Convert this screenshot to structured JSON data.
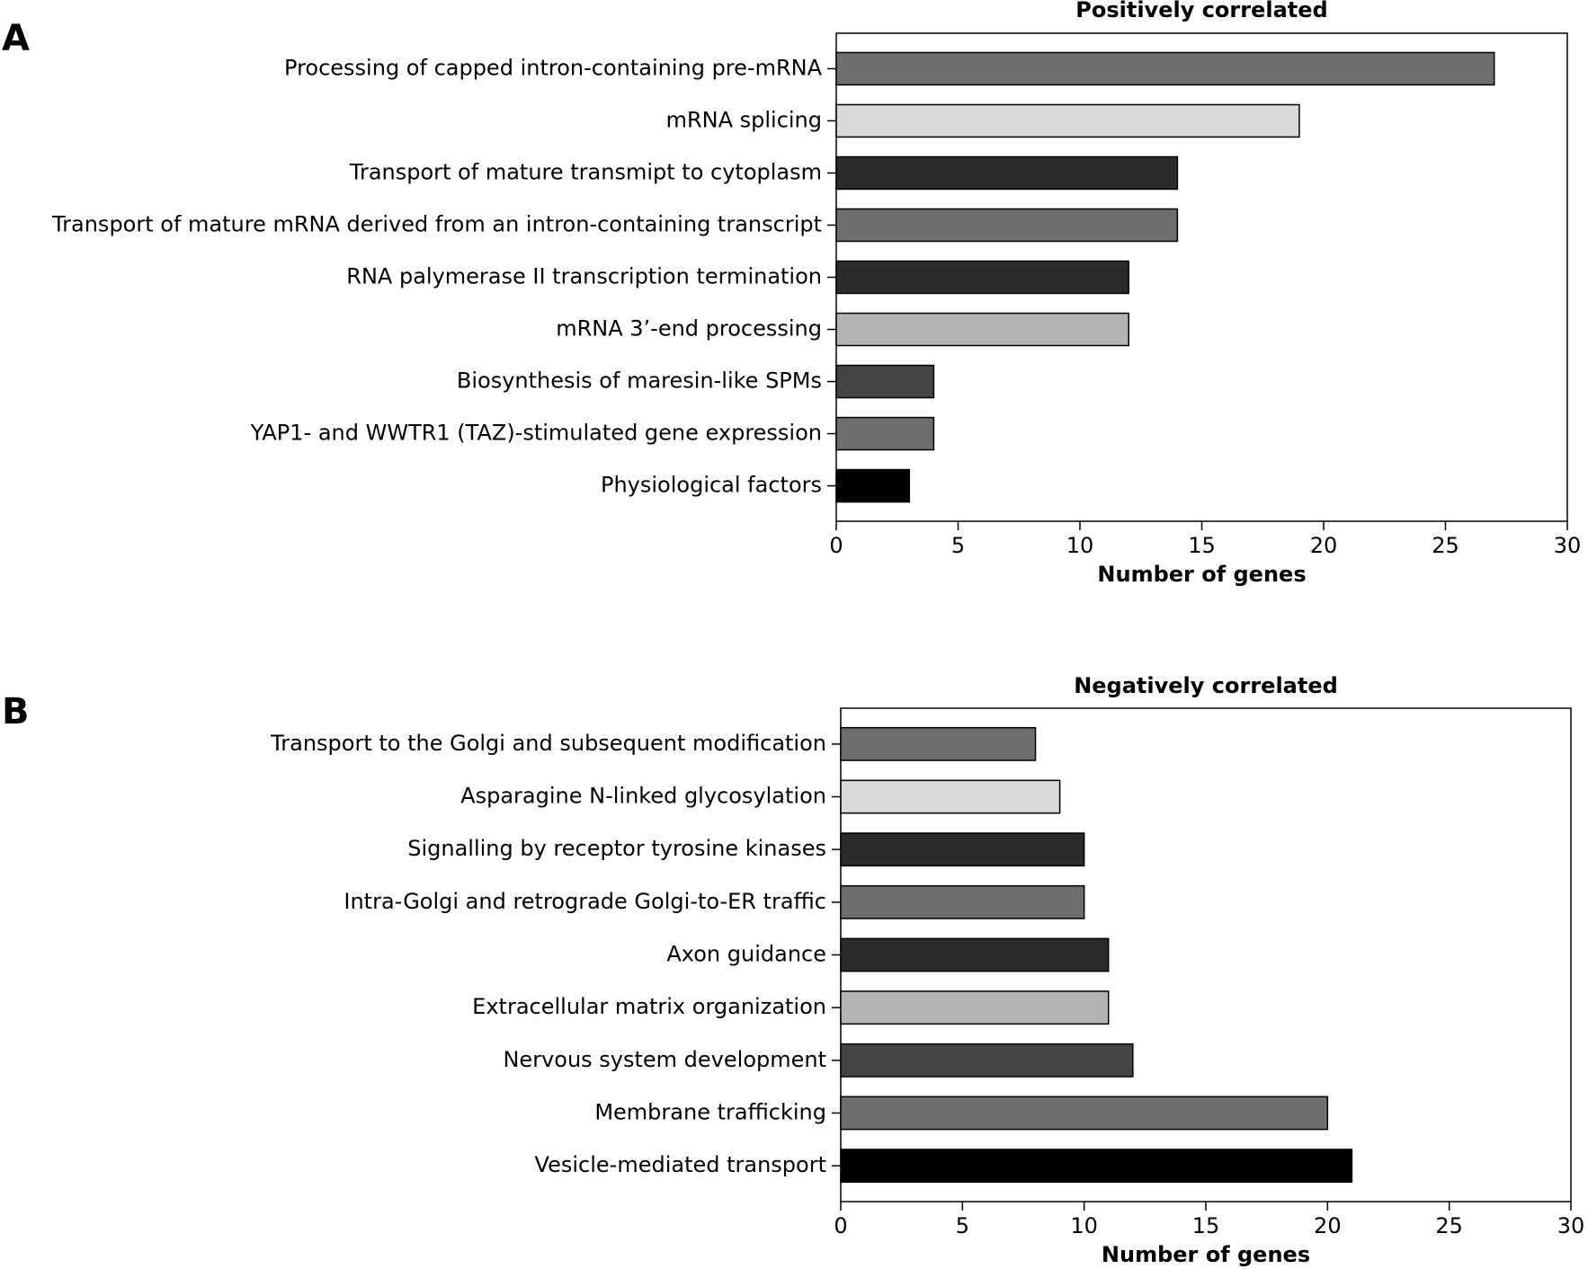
{
  "chart_data": [
    {
      "type": "barh",
      "panel_label": "A",
      "title": "Positively correlated",
      "xlabel": "Number of genes",
      "categories": [
        "Processing of capped intron-containing pre-mRNA",
        "mRNA splicing",
        "Transport of mature transmipt to cytoplasm",
        "Transport of mature mRNA derived from an intron-containing transcript",
        "RNA palymerase II transcription termination",
        "mRNA 3’-end processing",
        "Biosynthesis of maresin-like SPMs",
        "YAP1- and WWTR1 (TAZ)-stimulated gene expression",
        "Physiological factors"
      ],
      "values": [
        27,
        19,
        14,
        14,
        12,
        12,
        4,
        4,
        3
      ],
      "colors": [
        "#6e6e6e",
        "#d9d9d9",
        "#2b2b2b",
        "#6e6e6e",
        "#2b2b2b",
        "#b3b3b3",
        "#444444",
        "#6e6e6e",
        "#000000"
      ],
      "xlim": [
        0,
        30
      ],
      "xticks": [
        0,
        5,
        10,
        15,
        20,
        25,
        30
      ]
    },
    {
      "type": "barh",
      "panel_label": "B",
      "title": "Negatively correlated",
      "xlabel": "Number of genes",
      "categories": [
        "Transport to the Golgi and subsequent modification",
        "Asparagine N-linked glycosylation",
        "Signalling by receptor tyrosine kinases",
        "Intra-Golgi and retrograde Golgi-to-ER traffic",
        "Axon guidance",
        "Extracellular matrix organization",
        "Nervous system development",
        "Membrane trafficking",
        "Vesicle-mediated transport"
      ],
      "values": [
        8,
        9,
        10,
        10,
        11,
        11,
        12,
        20,
        21
      ],
      "colors": [
        "#6e6e6e",
        "#d9d9d9",
        "#2b2b2b",
        "#6e6e6e",
        "#2b2b2b",
        "#b3b3b3",
        "#444444",
        "#6e6e6e",
        "#000000"
      ],
      "xlim": [
        0,
        30
      ],
      "xticks": [
        0,
        5,
        10,
        15,
        20,
        25,
        30
      ]
    }
  ]
}
